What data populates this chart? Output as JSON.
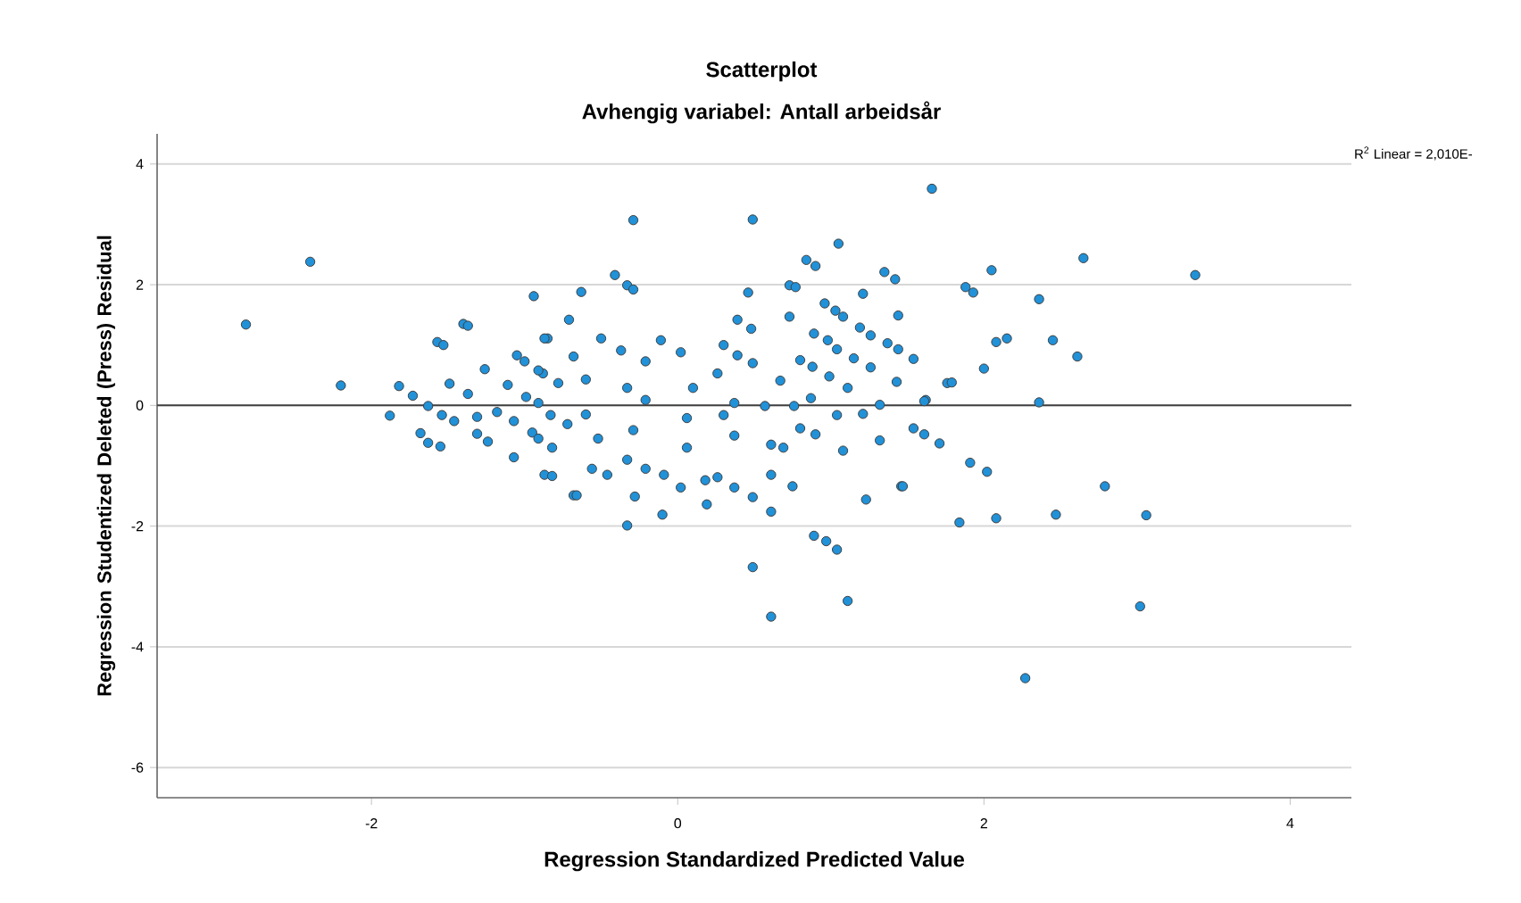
{
  "chart_data": {
    "type": "scatter",
    "title": "Scatterplot",
    "subtitle": "Avhengig variabel: Antall arbeidsår",
    "xlabel": "Regression Standardized Predicted Value",
    "ylabel": "Regression Studentized Deleted (Press) Residual",
    "annotations": [
      "R$^{2}$ Linear = 2,010E-"
    ],
    "xlim": [
      -3.4,
      4.4
    ],
    "ylim": [
      -6.5,
      4.5
    ],
    "xticks": [
      -2,
      0,
      2,
      4
    ],
    "yticks": [
      -6,
      -4,
      -2,
      0,
      2,
      4
    ],
    "grid": "y",
    "series": [
      {
        "color": "#2191d8",
        "marker": "circle",
        "x": [
          -2.82,
          -2.4,
          -2.2,
          -1.88,
          -1.82,
          -1.73,
          -1.63,
          -1.54,
          -1.46,
          -1.68,
          -1.63,
          -1.55,
          -1.57,
          -1.53,
          -1.4,
          -1.37,
          -1.49,
          -1.26,
          -1.37,
          -1.31,
          -1.31,
          -1.24,
          -1.07,
          -0.94,
          -1.05,
          -1.0,
          -0.85,
          -1.11,
          -0.99,
          -0.83,
          -0.72,
          -1.18,
          -1.07,
          -0.95,
          -0.82,
          -0.87,
          -0.82,
          -0.88,
          -0.78,
          -0.68,
          -0.71,
          -0.29,
          0.49,
          1.66,
          1.05,
          0.84,
          0.9,
          -0.41,
          -0.33,
          -0.29,
          -0.63,
          0.46,
          0.73,
          0.77,
          1.35,
          1.42,
          1.21,
          0.96,
          1.03,
          1.08,
          0.73,
          1.44,
          0.39,
          0.48,
          0.89,
          1.19,
          1.26,
          -0.5,
          -0.11,
          0.3,
          0.98,
          1.04,
          1.37,
          1.44,
          1.54,
          -0.37,
          0.02,
          0.39,
          0.49,
          0.8,
          0.88,
          1.15,
          1.26,
          1.43,
          -0.68,
          -0.87,
          0.99,
          0.67,
          1.11,
          0.87,
          0.76,
          -0.91,
          -0.6,
          -0.33,
          -0.21,
          0.1,
          0.37,
          0.26,
          0.57,
          -0.91,
          -0.6,
          -0.29,
          0.06,
          -0.21,
          0.06,
          0.37,
          0.69,
          0.3,
          0.61,
          -0.91,
          -0.52,
          -0.33,
          -0.09,
          0.18,
          -0.56,
          -0.46,
          -0.21,
          0.02,
          0.26,
          0.37,
          0.49,
          0.61,
          0.75,
          -0.66,
          -0.28,
          0.19,
          0.61,
          -0.1,
          -0.33,
          1.23,
          1.46,
          0.8,
          0.9,
          1.08,
          1.04,
          1.21,
          1.32,
          1.32,
          1.54,
          1.62,
          1.76,
          0.89,
          0.97,
          1.04,
          0.49,
          2.65,
          3.38,
          2.05,
          1.88,
          1.93,
          2.36,
          2.08,
          2.15,
          2.45,
          2.61,
          2.0,
          1.79,
          1.61,
          2.36,
          1.61,
          1.71,
          1.91,
          2.02,
          2.79,
          1.47,
          1.84,
          2.08,
          2.47,
          3.06,
          2.27,
          3.02,
          0.61,
          1.11
        ],
        "values": [
          1.34,
          2.38,
          0.33,
          -0.17,
          0.32,
          0.16,
          -0.01,
          -0.16,
          -0.26,
          -0.46,
          -0.62,
          -0.68,
          1.05,
          1.0,
          1.35,
          1.32,
          0.36,
          0.6,
          0.19,
          -0.19,
          -0.47,
          -0.6,
          -0.86,
          1.81,
          0.83,
          0.73,
          1.11,
          0.34,
          0.14,
          -0.16,
          -0.31,
          -0.11,
          -0.26,
          -0.45,
          -0.7,
          -1.15,
          -1.17,
          0.53,
          0.37,
          -1.49,
          1.42,
          3.07,
          3.08,
          3.59,
          2.68,
          2.41,
          2.31,
          2.16,
          1.99,
          1.92,
          1.88,
          1.87,
          1.99,
          1.96,
          2.21,
          2.09,
          1.85,
          1.69,
          1.57,
          1.47,
          1.47,
          1.49,
          1.42,
          1.27,
          1.19,
          1.29,
          1.16,
          1.11,
          1.08,
          1.0,
          1.08,
          0.93,
          1.03,
          0.93,
          0.77,
          0.91,
          0.88,
          0.83,
          0.7,
          0.75,
          0.64,
          0.78,
          0.63,
          0.39,
          0.81,
          1.11,
          0.48,
          0.41,
          0.29,
          0.12,
          -0.01,
          0.58,
          0.43,
          0.29,
          0.73,
          0.29,
          0.04,
          0.53,
          -0.01,
          0.04,
          -0.15,
          -0.41,
          -0.7,
          0.09,
          -0.21,
          -0.5,
          -0.7,
          -0.16,
          -0.65,
          -0.55,
          -0.55,
          -0.9,
          -1.15,
          -1.24,
          -1.05,
          -1.15,
          -1.05,
          -1.36,
          -1.19,
          -1.36,
          -1.52,
          -1.15,
          -1.34,
          -1.49,
          -1.51,
          -1.64,
          -1.76,
          -1.81,
          -1.99,
          -1.56,
          -1.34,
          -0.38,
          -0.48,
          -0.75,
          -0.16,
          -0.14,
          0.01,
          -0.58,
          -0.38,
          0.09,
          0.37,
          -2.16,
          -2.25,
          -2.39,
          -2.68,
          2.44,
          2.16,
          2.24,
          1.96,
          1.87,
          1.76,
          1.05,
          1.11,
          1.08,
          0.81,
          0.61,
          0.38,
          0.07,
          0.05,
          -0.48,
          -0.63,
          -0.95,
          -1.1,
          -1.34,
          -1.34,
          -1.94,
          -1.87,
          -1.81,
          -1.82,
          -4.52,
          -3.33,
          -3.5,
          -3.24
        ]
      },
      {
        "type": "line",
        "marker": "none",
        "color": "#404040",
        "x": [
          -3.4,
          4.4
        ],
        "values": [
          0,
          0
        ]
      }
    ]
  }
}
